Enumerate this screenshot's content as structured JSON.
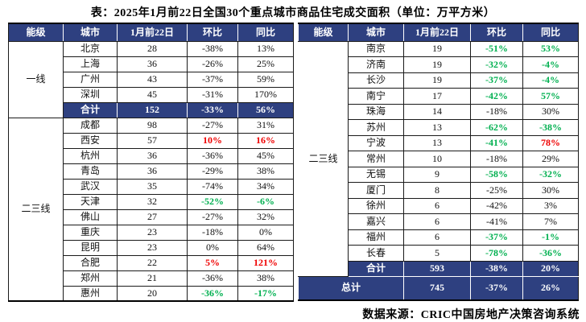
{
  "title": "表：2025年1月前22日全国30个重点城市商品住宅成交面积（单位：万平方米）",
  "source": "数据来源：CRIC中国房地产决策咨询系统",
  "palette": {
    "navy": "#2e4080",
    "red": "#ef0000",
    "green": "#00b050",
    "black": "#111111"
  },
  "chart_data": {
    "type": "table",
    "title": "表：2025年1月前22日全国30个重点城市商品住宅成交面积（单位：万平方米）",
    "unit": "万平方米",
    "columns": [
      "能级",
      "城市",
      "1月前22日",
      "环比",
      "同比"
    ],
    "left_table": {
      "tiers": [
        {
          "label": "一线",
          "start": 0,
          "rows": 5
        },
        {
          "label": "二三线",
          "start": 5,
          "rows": 12
        }
      ],
      "rows": [
        {
          "type": "city",
          "city": "北京",
          "value": "28",
          "mom": "-38%",
          "yoy": "13%",
          "mc": "k",
          "yc": "k"
        },
        {
          "type": "city",
          "city": "上海",
          "value": "36",
          "mom": "-26%",
          "yoy": "25%",
          "mc": "k",
          "yc": "k"
        },
        {
          "type": "city",
          "city": "广州",
          "value": "43",
          "mom": "-37%",
          "yoy": "59%",
          "mc": "k",
          "yc": "k"
        },
        {
          "type": "city",
          "city": "深圳",
          "value": "45",
          "mom": "-31%",
          "yoy": "170%",
          "mc": "k",
          "yc": "k"
        },
        {
          "type": "subtotal",
          "city": "合计",
          "value": "152",
          "mom": "-33%",
          "yoy": "56%"
        },
        {
          "type": "city",
          "city": "成都",
          "value": "98",
          "mom": "-27%",
          "yoy": "31%",
          "mc": "k",
          "yc": "k"
        },
        {
          "type": "city",
          "city": "西安",
          "value": "57",
          "mom": "10%",
          "yoy": "16%",
          "mc": "r",
          "yc": "r"
        },
        {
          "type": "city",
          "city": "杭州",
          "value": "36",
          "mom": "-36%",
          "yoy": "45%",
          "mc": "k",
          "yc": "k"
        },
        {
          "type": "city",
          "city": "青岛",
          "value": "36",
          "mom": "-29%",
          "yoy": "38%",
          "mc": "k",
          "yc": "k"
        },
        {
          "type": "city",
          "city": "武汉",
          "value": "35",
          "mom": "-74%",
          "yoy": "34%",
          "mc": "k",
          "yc": "k"
        },
        {
          "type": "city",
          "city": "天津",
          "value": "32",
          "mom": "-52%",
          "yoy": "-6%",
          "mc": "g",
          "yc": "g"
        },
        {
          "type": "city",
          "city": "佛山",
          "value": "27",
          "mom": "-27%",
          "yoy": "32%",
          "mc": "k",
          "yc": "k"
        },
        {
          "type": "city",
          "city": "重庆",
          "value": "23",
          "mom": "-18%",
          "yoy": "0%",
          "mc": "k",
          "yc": "k"
        },
        {
          "type": "city",
          "city": "昆明",
          "value": "23",
          "mom": "0%",
          "yoy": "64%",
          "mc": "k",
          "yc": "k"
        },
        {
          "type": "city",
          "city": "合肥",
          "value": "22",
          "mom": "5%",
          "yoy": "121%",
          "mc": "r",
          "yc": "r"
        },
        {
          "type": "city",
          "city": "郑州",
          "value": "21",
          "mom": "-36%",
          "yoy": "38%",
          "mc": "k",
          "yc": "k"
        },
        {
          "type": "city",
          "city": "惠州",
          "value": "20",
          "mom": "-36%",
          "yoy": "-17%",
          "mc": "g",
          "yc": "g"
        }
      ]
    },
    "right_table": {
      "tiers": [
        {
          "label": "二三线",
          "start": 0,
          "rows": 15
        }
      ],
      "rows": [
        {
          "type": "city",
          "city": "南京",
          "value": "19",
          "mom": "-51%",
          "yoy": "53%",
          "mc": "g",
          "yc": "g"
        },
        {
          "type": "city",
          "city": "济南",
          "value": "19",
          "mom": "-32%",
          "yoy": "-4%",
          "mc": "g",
          "yc": "g"
        },
        {
          "type": "city",
          "city": "长沙",
          "value": "19",
          "mom": "-37%",
          "yoy": "-4%",
          "mc": "g",
          "yc": "g"
        },
        {
          "type": "city",
          "city": "南宁",
          "value": "17",
          "mom": "-42%",
          "yoy": "57%",
          "mc": "g",
          "yc": "g"
        },
        {
          "type": "city",
          "city": "珠海",
          "value": "14",
          "mom": "-18%",
          "yoy": "30%",
          "mc": "k",
          "yc": "k"
        },
        {
          "type": "city",
          "city": "苏州",
          "value": "13",
          "mom": "-62%",
          "yoy": "-38%",
          "mc": "g",
          "yc": "g"
        },
        {
          "type": "city",
          "city": "宁波",
          "value": "13",
          "mom": "-41%",
          "yoy": "78%",
          "mc": "g",
          "yc": "r"
        },
        {
          "type": "city",
          "city": "常州",
          "value": "10",
          "mom": "-18%",
          "yoy": "29%",
          "mc": "k",
          "yc": "k"
        },
        {
          "type": "city",
          "city": "无锡",
          "value": "9",
          "mom": "-58%",
          "yoy": "-32%",
          "mc": "g",
          "yc": "g"
        },
        {
          "type": "city",
          "city": "厦门",
          "value": "8",
          "mom": "-25%",
          "yoy": "30%",
          "mc": "k",
          "yc": "k"
        },
        {
          "type": "city",
          "city": "徐州",
          "value": "6",
          "mom": "-42%",
          "yoy": "3%",
          "mc": "k",
          "yc": "k"
        },
        {
          "type": "city",
          "city": "嘉兴",
          "value": "6",
          "mom": "-41%",
          "yoy": "7%",
          "mc": "k",
          "yc": "k"
        },
        {
          "type": "city",
          "city": "福州",
          "value": "6",
          "mom": "-37%",
          "yoy": "-1%",
          "mc": "g",
          "yc": "g"
        },
        {
          "type": "city",
          "city": "长春",
          "value": "5",
          "mom": "-78%",
          "yoy": "-36%",
          "mc": "g",
          "yc": "g"
        },
        {
          "type": "subtotal",
          "city": "合计",
          "value": "593",
          "mom": "-38%",
          "yoy": "20%"
        },
        {
          "type": "grandtotal",
          "city": "总计",
          "value": "745",
          "mom": "-37%",
          "yoy": "26%"
        }
      ]
    }
  }
}
